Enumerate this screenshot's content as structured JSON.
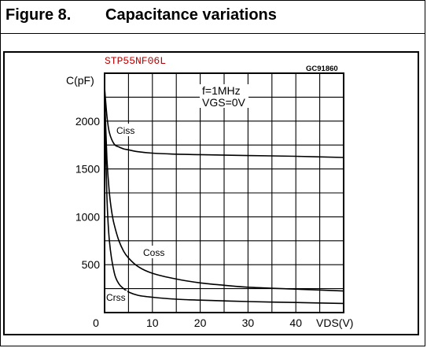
{
  "figure": {
    "number": "Figure 8.",
    "title": "Capacitance variations"
  },
  "chart_data": {
    "type": "line",
    "part_number": "STP55NF06L",
    "code": "GC91860",
    "conditions": [
      "f=1MHz",
      "VGS=0V"
    ],
    "ylabel": "C(pF)",
    "xlabel": "VDS(V)",
    "xlim": [
      0,
      50
    ],
    "ylim": [
      0,
      2500
    ],
    "x_ticks": [
      0,
      10,
      20,
      30,
      40
    ],
    "y_ticks": [
      500,
      1000,
      1500,
      2000
    ],
    "grid": true,
    "series": [
      {
        "name": "Ciss",
        "x": [
          0,
          0.5,
          1,
          2,
          3,
          4,
          5,
          7,
          10,
          15,
          20,
          30,
          40,
          52
        ],
        "y": [
          2350,
          2050,
          1880,
          1760,
          1730,
          1710,
          1700,
          1680,
          1665,
          1655,
          1650,
          1640,
          1632,
          1620
        ]
      },
      {
        "name": "Coss",
        "x": [
          0,
          0.5,
          1,
          1.5,
          2,
          3,
          4,
          5,
          7,
          10,
          15,
          20,
          25,
          30,
          40,
          52
        ],
        "y": [
          2300,
          1600,
          1250,
          1050,
          920,
          750,
          640,
          570,
          480,
          410,
          350,
          310,
          285,
          265,
          245,
          225
        ]
      },
      {
        "name": "Crss",
        "x": [
          0,
          0.5,
          1,
          2,
          3,
          4,
          5,
          7,
          10,
          15,
          20,
          30,
          40,
          52
        ],
        "y": [
          2200,
          1200,
          750,
          420,
          300,
          250,
          215,
          180,
          160,
          140,
          130,
          115,
          105,
          95
        ]
      }
    ]
  }
}
